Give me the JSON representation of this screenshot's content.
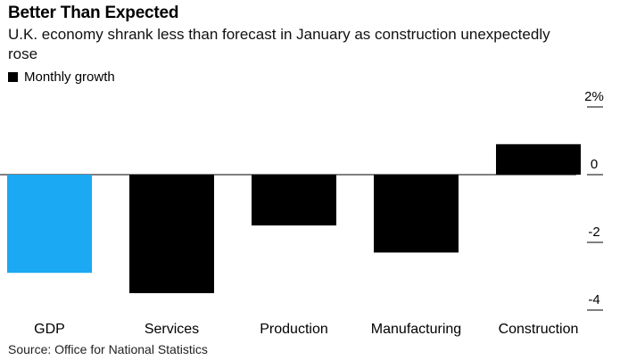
{
  "chart_data": {
    "type": "bar",
    "title": "Better Than Expected",
    "subtitle": "U.K. economy shrank less than forecast in January as construction unexpectedly rose",
    "legend": [
      "Monthly growth"
    ],
    "categories": [
      "GDP",
      "Services",
      "Production",
      "Manufacturing",
      "Construction"
    ],
    "values": [
      -2.9,
      -3.5,
      -1.5,
      -2.3,
      0.9
    ],
    "highlight_color": "#1aa9f2",
    "bar_color": "#000000",
    "yticks": [
      2,
      0,
      -2,
      -4
    ],
    "ytick_labels": [
      "2%",
      "0",
      "-2",
      "-4"
    ],
    "ylim": [
      -4.2,
      2.4
    ],
    "xlabel": "",
    "ylabel": "",
    "source": "Source: Office for National Statistics"
  }
}
